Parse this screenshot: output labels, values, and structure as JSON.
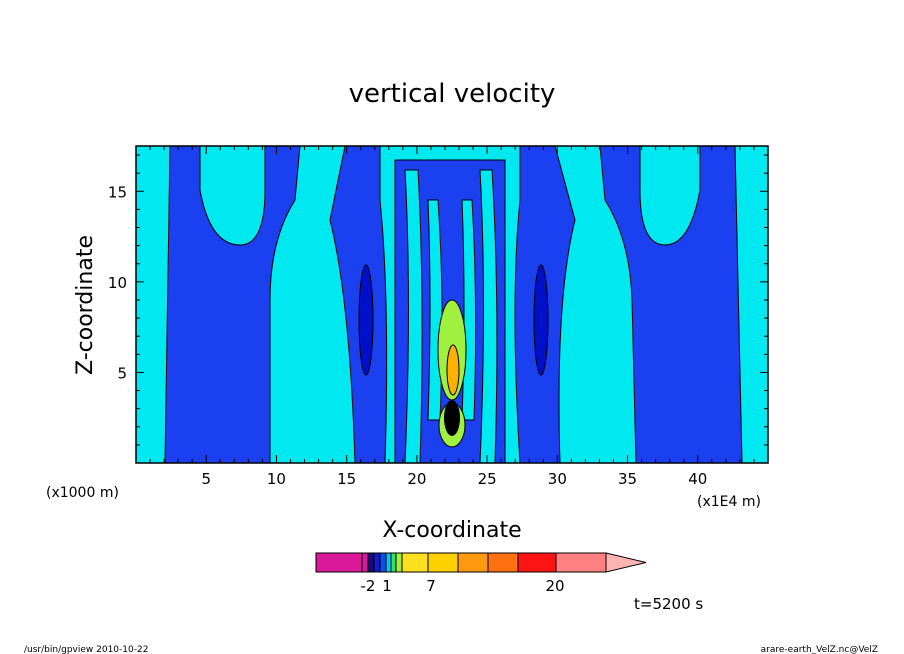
{
  "chart_data": {
    "type": "heatmap",
    "title": "vertical velocity",
    "xlabel": "X-coordinate",
    "ylabel": "Z-coordinate",
    "x_unit_note": "(x1000 m)",
    "y_unit_note": "(x1E4 m)",
    "xlim": [
      0,
      45
    ],
    "ylim": [
      0,
      17.5
    ],
    "x_ticks": [
      "5",
      "10",
      "15",
      "20",
      "25",
      "30",
      "35",
      "40"
    ],
    "y_ticks": [
      "5",
      "10",
      "15"
    ],
    "time_label": "t=5200 s",
    "colorbar": {
      "colors": [
        "#d9199a",
        "#d9199a",
        "#1a0a7a",
        "#1a1ac8",
        "#0a50f0",
        "#00c8f0",
        "#30e070",
        "#a0f040",
        "#ffe020",
        "#ffd000",
        "#ff9a10",
        "#ff7010",
        "#ff1414",
        "#ff8080",
        "#ffb4b4"
      ],
      "labels": [
        "-2",
        "1",
        "7",
        "20"
      ],
      "extend": "max"
    },
    "colors": {
      "negative_strong": "#0010c8",
      "negative": "#1a40f0",
      "near_zero": "#00e8f0",
      "positive_small": "#a0f040",
      "positive": "#ffb000",
      "peak": "#000000"
    }
  },
  "footer": {
    "left": "/usr/bin/gpview   2010-10-22",
    "right": "arare-earth_VelZ.nc@VelZ"
  }
}
